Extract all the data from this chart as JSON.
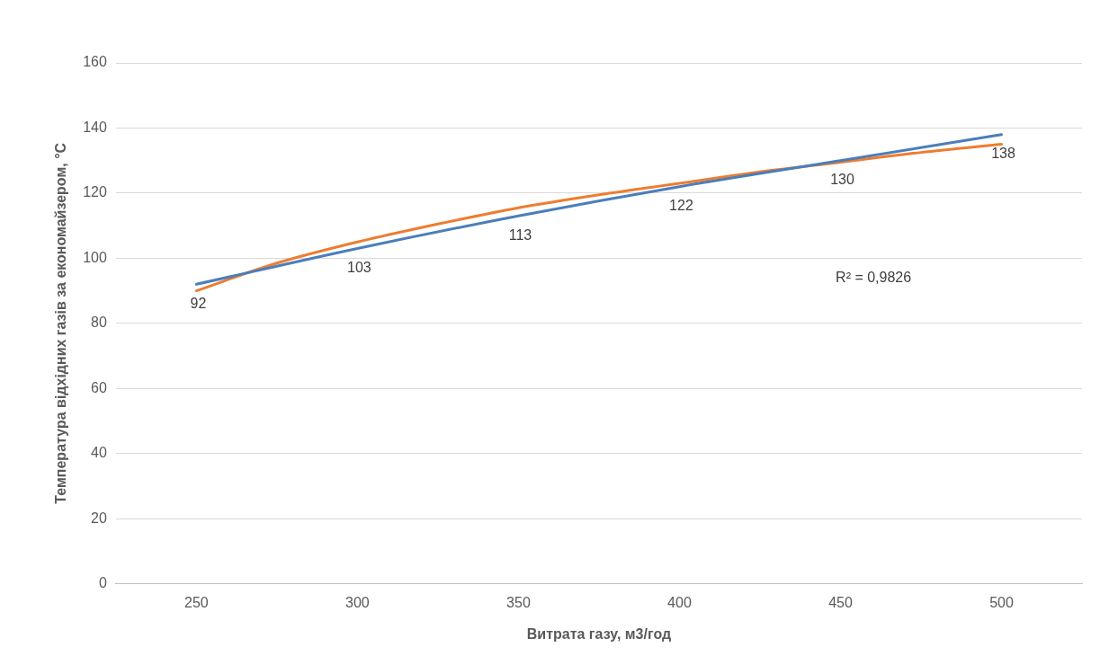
{
  "chart_data": {
    "type": "line",
    "xlabel": "Витрата газу, м3/год",
    "ylabel": "Температура відхідних газів за економайзером, °C",
    "xlim": [
      225,
      525
    ],
    "xticks": [
      250,
      300,
      350,
      400,
      450,
      500
    ],
    "ylim": [
      0,
      160
    ],
    "yticks": [
      0,
      20,
      40,
      60,
      80,
      100,
      120,
      140,
      160
    ],
    "grid": "y",
    "marker": "none",
    "series": [
      {
        "color": "#4a7ebb",
        "x": [
          250,
          300,
          350,
          400,
          450,
          500
        ],
        "values": [
          92,
          103,
          113,
          122,
          130,
          138
        ],
        "value_labels": [
          "92",
          "103",
          "113",
          "122",
          "130",
          "138"
        ]
      },
      {
        "color": "#ed7d31",
        "x": [
          250,
          275,
          300,
          325,
          350,
          375,
          400,
          425,
          450,
          475,
          500
        ],
        "values": [
          90,
          98.5,
          105,
          110.5,
          115.5,
          119.5,
          123,
          126.5,
          129.5,
          132.5,
          135
        ]
      }
    ],
    "annotations": [
      "R² = 0,9826"
    ]
  }
}
